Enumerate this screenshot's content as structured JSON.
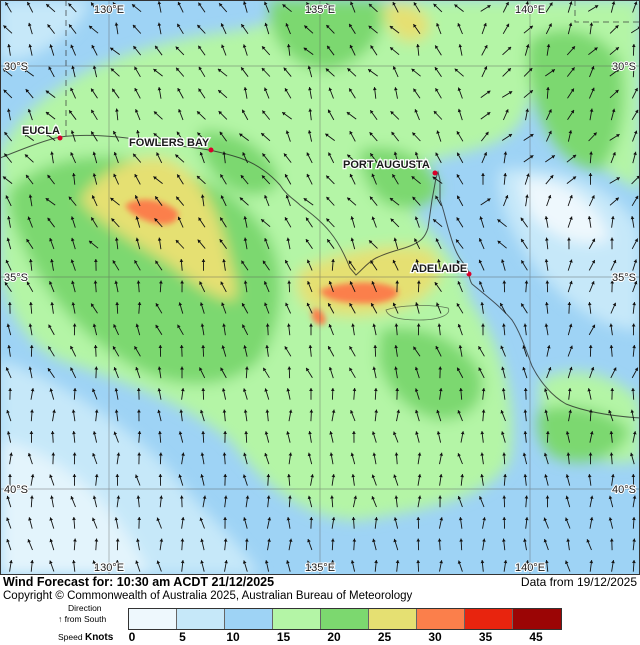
{
  "map": {
    "longitude_labels": [
      "130°E",
      "135°E",
      "140°E"
    ],
    "latitude_labels": [
      "30°S",
      "35°S",
      "40°S"
    ],
    "places": [
      {
        "name": "EUCLA"
      },
      {
        "name": "FOWLERS BAY"
      },
      {
        "name": "PORT AUGUSTA"
      },
      {
        "name": "ADELAIDE"
      }
    ],
    "marker_color": "#d8002a"
  },
  "footer": {
    "title": "Wind Forecast for: 10:30 am ACDT 21/12/2025",
    "data_from": "Data from 19/12/2025",
    "copyright": "Copyright © Commonwealth of Australia 2025, Australian Bureau of Meteorology"
  },
  "legend": {
    "direction_label": "Direction",
    "direction_sub": "↑ from South",
    "speed_label": "Speed",
    "units_label": "Knots",
    "ticks": [
      "0",
      "5",
      "10",
      "15",
      "20",
      "25",
      "30",
      "35",
      "45"
    ],
    "colors": [
      "#eef8fd",
      "#c6e8f9",
      "#9ed3f5",
      "#b4f5a6",
      "#7cd86f",
      "#e5e072",
      "#fb7f4b",
      "#e8240e",
      "#9b0505"
    ]
  }
}
